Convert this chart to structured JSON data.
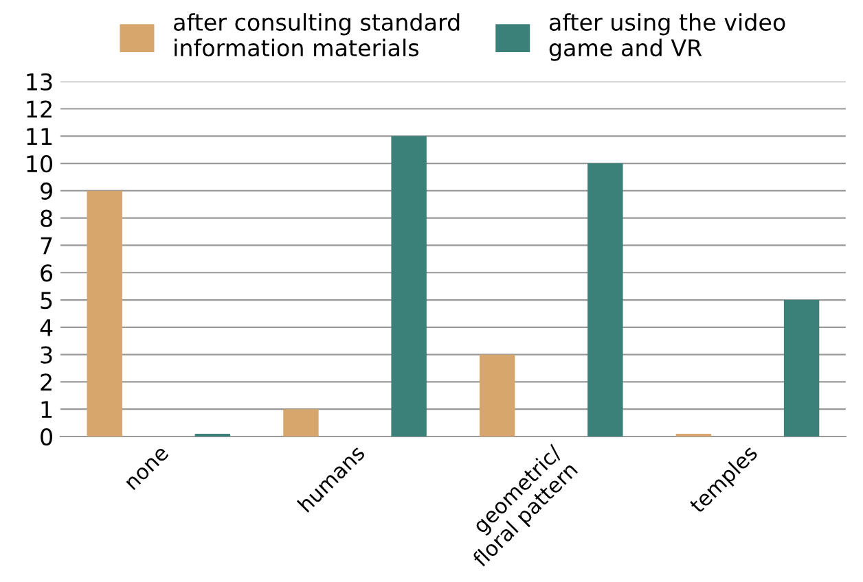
{
  "chart_data": {
    "type": "bar",
    "categories": [
      "none",
      "humans",
      "geometric/\nfloral pattern",
      "temples"
    ],
    "series": [
      {
        "name": "after consulting standard\ninformation materials",
        "color": "#d6a66c",
        "values": [
          9,
          1,
          3,
          0.1
        ]
      },
      {
        "name": "after using the video\ngame and VR",
        "color": "#3b8079",
        "values": [
          0.1,
          11,
          10,
          5
        ]
      }
    ],
    "ylim": [
      0,
      13
    ],
    "yticks": [
      0,
      1,
      2,
      3,
      4,
      5,
      6,
      7,
      8,
      9,
      10,
      11,
      12,
      13
    ],
    "grid": "y",
    "legend": "top"
  }
}
